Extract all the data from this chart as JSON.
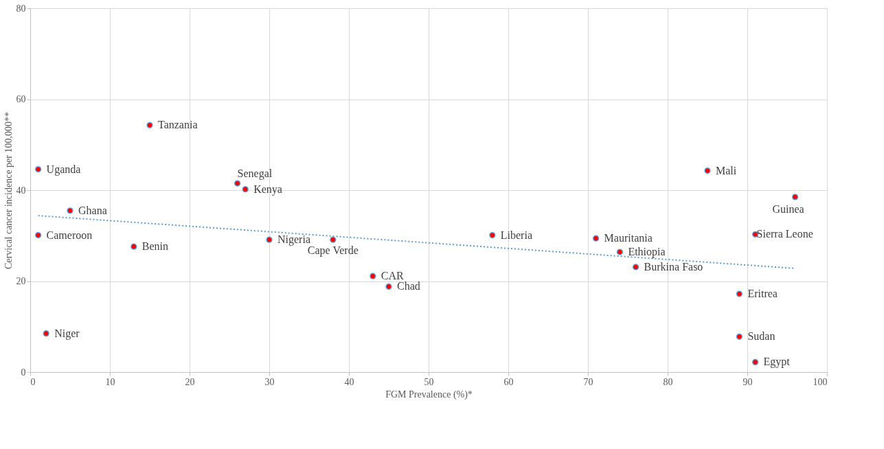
{
  "chart_data": {
    "type": "scatter",
    "xlabel": "FGM Prevalence (%)*",
    "ylabel": "Cervical cancer incidence per 100,000**",
    "xlim": [
      0,
      100
    ],
    "xticks": [
      0,
      10,
      20,
      30,
      40,
      50,
      60,
      70,
      80,
      90,
      100
    ],
    "ylim": [
      0,
      80
    ],
    "yticks": [
      0,
      20,
      40,
      60,
      80
    ],
    "grid": true,
    "marker": "circle",
    "series": [
      {
        "color": "#ff0000",
        "x": [
          1,
          15,
          26,
          27,
          5,
          1,
          13,
          30,
          38,
          43,
          45,
          2,
          58,
          71,
          74,
          76,
          85,
          96,
          91,
          89,
          89,
          91
        ],
        "values": [
          44.6,
          54.3,
          41.5,
          40.2,
          35.5,
          30.1,
          27.6,
          29.1,
          29.1,
          21.1,
          18.8,
          8.5,
          30.1,
          29.4,
          26.4,
          23.1,
          44.3,
          38.5,
          30.3,
          17.2,
          7.8,
          2.2
        ]
      },
      {
        "type": "line",
        "color": "#5b9bd5",
        "line_style": "dotted",
        "marker": "none",
        "x": [
          1,
          96
        ],
        "values": [
          34.4,
          22.8
        ]
      }
    ],
    "annotations": [
      {
        "text": "Uganda",
        "x": 1,
        "y": 44.6
      },
      {
        "text": "Tanzania",
        "x": 15,
        "y": 54.3
      },
      {
        "text": "Senegal",
        "x": 26,
        "y": 41.5
      },
      {
        "text": "Kenya",
        "x": 27,
        "y": 40.2
      },
      {
        "text": "Ghana",
        "x": 5,
        "y": 35.5
      },
      {
        "text": "Cameroon",
        "x": 1,
        "y": 30.1
      },
      {
        "text": "Benin",
        "x": 13,
        "y": 27.6
      },
      {
        "text": "Nigeria",
        "x": 30,
        "y": 29.1
      },
      {
        "text": "Cape Verde",
        "x": 38,
        "y": 29.1
      },
      {
        "text": "CAR",
        "x": 43,
        "y": 21.1
      },
      {
        "text": "Chad",
        "x": 45,
        "y": 18.8
      },
      {
        "text": "Niger",
        "x": 2,
        "y": 8.5
      },
      {
        "text": "Liberia",
        "x": 58,
        "y": 30.1
      },
      {
        "text": "Mauritania",
        "x": 71,
        "y": 29.4
      },
      {
        "text": "Ethiopia",
        "x": 74,
        "y": 26.4
      },
      {
        "text": "Burkina Faso",
        "x": 76,
        "y": 23.1
      },
      {
        "text": "Mali",
        "x": 85,
        "y": 44.3
      },
      {
        "text": "Guinea",
        "x": 96,
        "y": 38.5
      },
      {
        "text": "Sierra Leone",
        "x": 91,
        "y": 30.3
      },
      {
        "text": "Eritrea",
        "x": 89,
        "y": 17.2
      },
      {
        "text": "Sudan",
        "x": 89,
        "y": 7.8
      },
      {
        "text": "Egypt",
        "x": 91,
        "y": 2.2
      }
    ]
  }
}
